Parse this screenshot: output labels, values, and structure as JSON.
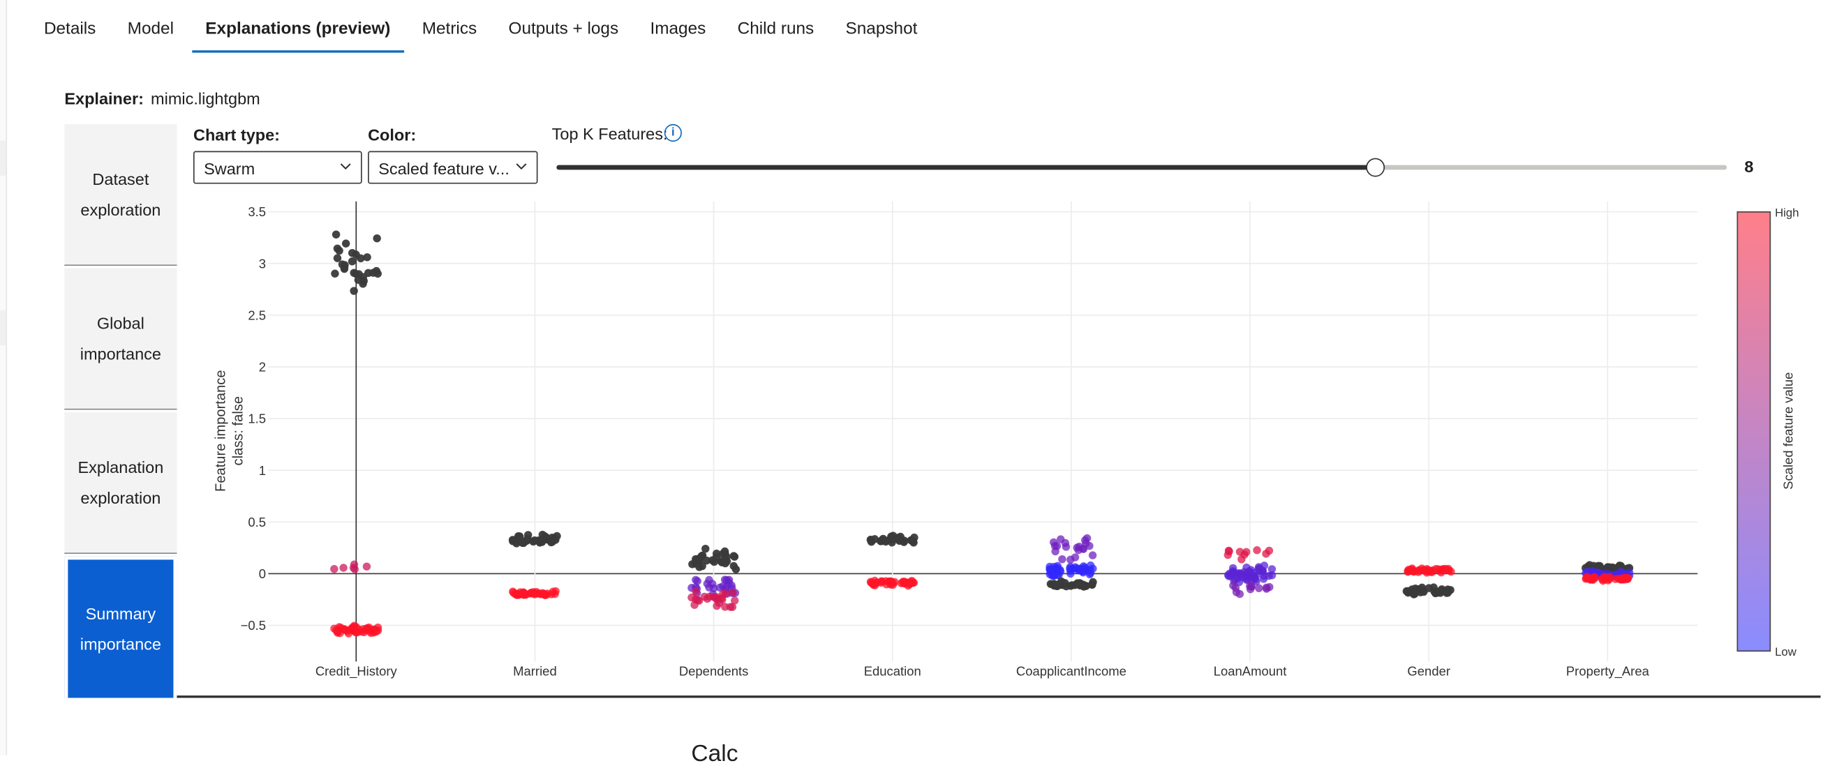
{
  "tabs": [
    {
      "label": "Details",
      "active": false
    },
    {
      "label": "Model",
      "active": false
    },
    {
      "label": "Explanations (preview)",
      "active": true
    },
    {
      "label": "Metrics",
      "active": false
    },
    {
      "label": "Outputs + logs",
      "active": false
    },
    {
      "label": "Images",
      "active": false
    },
    {
      "label": "Child runs",
      "active": false
    },
    {
      "label": "Snapshot",
      "active": false
    }
  ],
  "explainer": {
    "label": "Explainer:",
    "value": "mimic.lightgbm"
  },
  "nav": [
    {
      "line1": "Dataset",
      "line2": "exploration",
      "active": false
    },
    {
      "line1": "Global",
      "line2": "importance",
      "active": false
    },
    {
      "line1": "Explanation",
      "line2": "exploration",
      "active": false
    },
    {
      "line1": "Summary",
      "line2": "importance",
      "active": true
    }
  ],
  "controls": {
    "chart_type_label": "Chart type:",
    "chart_type_value": "Swarm",
    "color_label": "Color:",
    "color_value": "Scaled feature v...",
    "topk_label": "Top K Features:",
    "topk_value": "8",
    "topk_fraction": 0.7
  },
  "colors": {
    "accent": "#0f6cbd",
    "nav_active": "#0b5fd1",
    "high": "#ff7f8a",
    "low": "#8a8cff",
    "dark_point": "#3a3a3a"
  },
  "chart_data": {
    "type": "scatter",
    "subtype": "swarm",
    "ylabel": "Feature importance",
    "ylabel2": "class:  false",
    "ylim": [
      -0.85,
      3.6
    ],
    "yticks": [
      "3.5",
      "3",
      "2.5",
      "2",
      "1.5",
      "1",
      "0.5",
      "0",
      "−0.5"
    ],
    "ytick_values": [
      3.5,
      3,
      2.5,
      2,
      1.5,
      1,
      0.5,
      0,
      -0.5
    ],
    "categories": [
      "Credit_History",
      "Married",
      "Dependents",
      "Education",
      "CoapplicantIncome",
      "LoanAmount",
      "Gender",
      "Property_Area"
    ],
    "colorbar": {
      "title": "Scaled feature value",
      "high": "High",
      "low": "Low"
    },
    "clusters": [
      {
        "feature": "Credit_History",
        "center": 3.0,
        "spread": 0.22,
        "count": 28,
        "color": 0.5,
        "dark": true
      },
      {
        "feature": "Credit_History",
        "center": 0.05,
        "spread": 0.06,
        "count": 6,
        "color": 0.75
      },
      {
        "feature": "Credit_History",
        "center": -0.54,
        "spread": 0.03,
        "count": 45,
        "color": 1.0
      },
      {
        "feature": "Married",
        "center": 0.33,
        "spread": 0.04,
        "count": 35,
        "color": 0.5,
        "dark": true
      },
      {
        "feature": "Married",
        "center": -0.19,
        "spread": 0.02,
        "count": 40,
        "color": 1.0
      },
      {
        "feature": "Dependents",
        "center": 0.15,
        "spread": 0.08,
        "count": 30,
        "color": 0.5,
        "dark": true
      },
      {
        "feature": "Dependents",
        "center": -0.12,
        "spread": 0.07,
        "count": 25,
        "color": 0.25
      },
      {
        "feature": "Dependents",
        "center": -0.25,
        "spread": 0.08,
        "count": 25,
        "color": 0.8
      },
      {
        "feature": "Education",
        "center": 0.33,
        "spread": 0.03,
        "count": 30,
        "color": 0.5,
        "dark": true
      },
      {
        "feature": "Education",
        "center": -0.09,
        "spread": 0.02,
        "count": 40,
        "color": 1.0
      },
      {
        "feature": "CoapplicantIncome",
        "center": 0.25,
        "spread": 0.1,
        "count": 20,
        "color": 0.3
      },
      {
        "feature": "CoapplicantIncome",
        "center": 0.03,
        "spread": 0.05,
        "count": 45,
        "color": 0.0
      },
      {
        "feature": "CoapplicantIncome",
        "center": -0.1,
        "spread": 0.02,
        "count": 30,
        "color": 0.5,
        "dark": true
      },
      {
        "feature": "LoanAmount",
        "center": 0.2,
        "spread": 0.05,
        "count": 10,
        "color": 0.85
      },
      {
        "feature": "LoanAmount",
        "center": 0.0,
        "spread": 0.07,
        "count": 55,
        "color": 0.2
      },
      {
        "feature": "LoanAmount",
        "center": -0.15,
        "spread": 0.04,
        "count": 12,
        "color": 0.35
      },
      {
        "feature": "Gender",
        "center": 0.03,
        "spread": 0.02,
        "count": 40,
        "color": 1.0
      },
      {
        "feature": "Gender",
        "center": -0.17,
        "spread": 0.03,
        "count": 30,
        "color": 0.5,
        "dark": true
      },
      {
        "feature": "Property_Area",
        "center": 0.06,
        "spread": 0.02,
        "count": 30,
        "color": 0.5,
        "dark": true
      },
      {
        "feature": "Property_Area",
        "center": 0.0,
        "spread": 0.02,
        "count": 35,
        "color": 0.1
      },
      {
        "feature": "Property_Area",
        "center": -0.05,
        "spread": 0.015,
        "count": 35,
        "color": 1.0
      }
    ]
  },
  "footer": {
    "heading": "Calc\u0000"
  }
}
